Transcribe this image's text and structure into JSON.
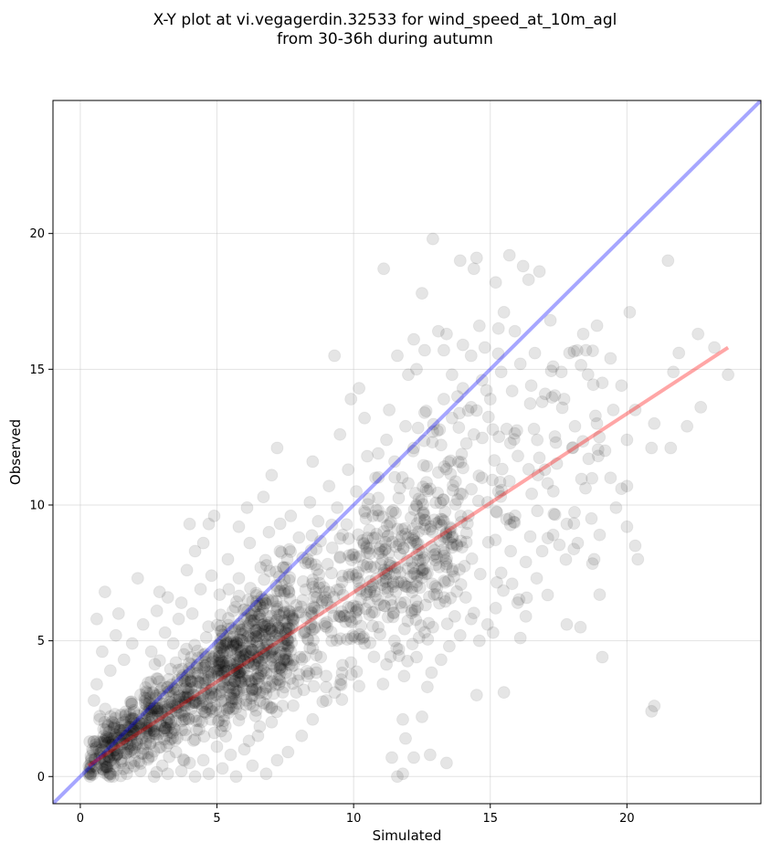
{
  "chart_data": {
    "type": "scatter",
    "title_line1": "X-Y plot at vi.vegagerdin.32533 for wind_speed_at_10m_agl",
    "title_line2": "from 30-36h during autumn",
    "xlabel": "Simulated",
    "ylabel": "Observed",
    "xlim": [
      -1.0,
      24.9
    ],
    "ylim": [
      -1.0,
      24.9
    ],
    "xticks": [
      0,
      5,
      10,
      15,
      20
    ],
    "yticks": [
      0,
      5,
      10,
      15,
      20
    ],
    "grid": true,
    "point_color": "#000000",
    "point_alpha": 0.1,
    "series": [
      {
        "type": "scatter",
        "n_points": 1800,
        "points": [
          [
            0.6,
            5.8
          ],
          [
            0.9,
            6.8
          ],
          [
            1.4,
            6.0
          ],
          [
            2.1,
            7.3
          ],
          [
            2.9,
            6.8
          ],
          [
            3.2,
            6.6
          ],
          [
            3.6,
            5.8
          ],
          [
            3.9,
            7.6
          ],
          [
            4.0,
            9.3
          ],
          [
            4.2,
            8.3
          ],
          [
            4.5,
            8.6
          ],
          [
            4.7,
            9.3
          ],
          [
            4.9,
            9.6
          ],
          [
            5.8,
            9.2
          ],
          [
            6.1,
            9.9
          ],
          [
            6.7,
            10.3
          ],
          [
            7.0,
            11.1
          ],
          [
            7.2,
            12.1
          ],
          [
            8.5,
            11.6
          ],
          [
            9.3,
            15.5
          ],
          [
            9.5,
            12.6
          ],
          [
            9.9,
            13.9
          ],
          [
            10.2,
            14.3
          ],
          [
            10.4,
            13.2
          ],
          [
            10.9,
            11.9
          ],
          [
            11.3,
            13.5
          ],
          [
            11.1,
            18.7
          ],
          [
            11.6,
            15.5
          ],
          [
            12.0,
            14.8
          ],
          [
            12.2,
            16.1
          ],
          [
            12.3,
            15.0
          ],
          [
            12.5,
            17.8
          ],
          [
            12.6,
            15.7
          ],
          [
            12.9,
            19.8
          ],
          [
            13.1,
            16.4
          ],
          [
            13.3,
            15.7
          ],
          [
            13.4,
            16.3
          ],
          [
            13.6,
            14.8
          ],
          [
            13.8,
            14.0
          ],
          [
            13.9,
            19.0
          ],
          [
            14.0,
            15.9
          ],
          [
            14.3,
            15.5
          ],
          [
            14.4,
            18.7
          ],
          [
            14.5,
            19.1
          ],
          [
            14.6,
            16.6
          ],
          [
            14.8,
            15.8
          ],
          [
            15.2,
            18.2
          ],
          [
            15.3,
            16.5
          ],
          [
            15.5,
            17.1
          ],
          [
            15.7,
            19.2
          ],
          [
            15.9,
            16.4
          ],
          [
            16.2,
            18.8
          ],
          [
            16.4,
            18.3
          ],
          [
            16.8,
            18.6
          ],
          [
            17.2,
            16.8
          ],
          [
            17.6,
            14.9
          ],
          [
            17.9,
            15.6
          ],
          [
            18.4,
            16.3
          ],
          [
            18.5,
            15.7
          ],
          [
            19.1,
            14.5
          ],
          [
            19.4,
            15.4
          ],
          [
            20.1,
            17.1
          ],
          [
            21.5,
            19.0
          ],
          [
            21.9,
            15.6
          ],
          [
            22.6,
            16.3
          ],
          [
            23.2,
            15.8
          ],
          [
            23.7,
            14.8
          ],
          [
            21.7,
            14.9
          ],
          [
            22.2,
            12.9
          ],
          [
            22.7,
            13.6
          ],
          [
            20.9,
            12.1
          ],
          [
            21.0,
            13.0
          ],
          [
            21.6,
            12.1
          ],
          [
            20.3,
            13.5
          ],
          [
            20.0,
            12.4
          ],
          [
            19.5,
            13.5
          ],
          [
            19.2,
            12.0
          ],
          [
            18.9,
            13.0
          ],
          [
            18.6,
            11.7
          ],
          [
            18.1,
            12.9
          ],
          [
            17.7,
            13.9
          ],
          [
            17.4,
            12.3
          ],
          [
            17.0,
            11.3
          ],
          [
            16.6,
            12.8
          ],
          [
            19.8,
            10.6
          ],
          [
            20.0,
            10.7
          ],
          [
            19.6,
            9.9
          ],
          [
            20.3,
            8.5
          ],
          [
            20.4,
            8.0
          ],
          [
            20.0,
            9.2
          ],
          [
            19.0,
            8.9
          ],
          [
            18.7,
            9.5
          ],
          [
            18.2,
            8.6
          ],
          [
            17.8,
            9.3
          ],
          [
            17.3,
            8.9
          ],
          [
            16.9,
            8.3
          ],
          [
            16.7,
            7.3
          ],
          [
            16.3,
            7.9
          ],
          [
            16.0,
            6.4
          ],
          [
            15.8,
            7.1
          ],
          [
            15.4,
            7.5
          ],
          [
            15.2,
            6.2
          ],
          [
            15.1,
            5.3
          ],
          [
            14.9,
            5.6
          ],
          [
            14.6,
            5.0
          ],
          [
            14.3,
            5.8
          ],
          [
            14.1,
            6.6
          ],
          [
            13.9,
            5.2
          ],
          [
            13.7,
            5.9
          ],
          [
            13.5,
            4.8
          ],
          [
            13.2,
            4.3
          ],
          [
            12.9,
            5.5
          ],
          [
            13.4,
            0.5
          ],
          [
            12.8,
            0.8
          ],
          [
            12.2,
            0.7
          ],
          [
            11.8,
            0.1
          ],
          [
            11.4,
            0.7
          ],
          [
            11.6,
            0.0
          ],
          [
            11.9,
            1.4
          ],
          [
            12.5,
            2.2
          ],
          [
            12.7,
            3.3
          ],
          [
            12.3,
            4.4
          ],
          [
            11.8,
            2.1
          ],
          [
            14.5,
            3.0
          ],
          [
            15.5,
            3.1
          ],
          [
            16.1,
            5.1
          ],
          [
            16.3,
            5.9
          ],
          [
            17.8,
            5.6
          ],
          [
            18.3,
            5.5
          ],
          [
            19.0,
            6.7
          ],
          [
            19.1,
            4.4
          ],
          [
            20.9,
            2.4
          ],
          [
            21.0,
            2.6
          ],
          [
            18.8,
            8.0
          ],
          [
            19.4,
            11.0
          ],
          [
            19.8,
            14.4
          ],
          [
            18.0,
            12.1
          ],
          [
            17.1,
            10.8
          ],
          [
            15.7,
            9.5
          ],
          [
            15.3,
            10.5
          ],
          [
            14.9,
            10.1
          ],
          [
            14.7,
            11.0
          ],
          [
            14.2,
            9.6
          ],
          [
            13.8,
            10.2
          ],
          [
            13.6,
            8.8
          ],
          [
            13.3,
            9.4
          ],
          [
            13.0,
            8.2
          ],
          [
            12.8,
            9.1
          ],
          [
            12.5,
            7.6
          ],
          [
            12.2,
            8.7
          ],
          [
            11.9,
            7.0
          ],
          [
            11.7,
            8.2
          ],
          [
            11.4,
            6.3
          ],
          [
            11.1,
            7.5
          ],
          [
            10.9,
            5.5
          ],
          [
            10.6,
            6.8
          ],
          [
            10.4,
            4.9
          ],
          [
            10.1,
            6.1
          ],
          [
            9.9,
            4.2
          ],
          [
            9.7,
            5.7
          ],
          [
            9.5,
            3.4
          ],
          [
            9.2,
            5.0
          ],
          [
            9.0,
            2.8
          ],
          [
            8.8,
            4.4
          ],
          [
            8.5,
            2.1
          ],
          [
            8.3,
            3.7
          ],
          [
            8.1,
            1.5
          ],
          [
            7.9,
            3.1
          ],
          [
            7.6,
            0.9
          ],
          [
            7.4,
            2.6
          ],
          [
            7.2,
            0.6
          ],
          [
            7.0,
            2.0
          ],
          [
            6.8,
            0.1
          ],
          [
            6.5,
            1.5
          ],
          [
            6.3,
            0.4
          ],
          [
            6.0,
            1.0
          ],
          [
            5.7,
            0.0
          ],
          [
            5.5,
            0.8
          ],
          [
            5.2,
            0.3
          ],
          [
            5.0,
            1.1
          ],
          [
            4.7,
            0.1
          ],
          [
            4.5,
            0.6
          ],
          [
            4.2,
            0.0
          ],
          [
            4.0,
            0.5
          ],
          [
            3.7,
            0.2
          ],
          [
            3.5,
            0.9
          ],
          [
            3.2,
            0.1
          ],
          [
            3.0,
            0.4
          ],
          [
            2.7,
            0.0
          ],
          [
            2.5,
            0.7
          ],
          [
            2.2,
            0.2
          ],
          [
            2.0,
            0.9
          ],
          [
            1.7,
            0.1
          ],
          [
            1.5,
            0.5
          ],
          [
            1.2,
            0.0
          ],
          [
            1.0,
            0.8
          ],
          [
            0.8,
            0.3
          ],
          [
            0.6,
            1.3
          ],
          [
            0.4,
            0.6
          ],
          [
            0.3,
            0.1
          ],
          [
            0.7,
            2.1
          ],
          [
            0.5,
            2.8
          ],
          [
            0.6,
            3.4
          ],
          [
            0.8,
            4.6
          ],
          [
            1.1,
            3.9
          ],
          [
            1.3,
            5.2
          ],
          [
            1.6,
            4.3
          ],
          [
            1.9,
            4.9
          ],
          [
            2.3,
            5.6
          ],
          [
            2.6,
            4.6
          ],
          [
            2.8,
            6.1
          ],
          [
            3.1,
            5.3
          ],
          [
            3.4,
            4.9
          ],
          [
            3.7,
            6.4
          ],
          [
            4.1,
            6.0
          ],
          [
            4.4,
            6.9
          ],
          [
            4.8,
            7.4
          ],
          [
            5.1,
            6.7
          ],
          [
            5.4,
            8.0
          ],
          [
            5.8,
            7.3
          ],
          [
            6.2,
            8.6
          ],
          [
            6.6,
            7.7
          ],
          [
            6.9,
            9.0
          ],
          [
            7.3,
            8.3
          ],
          [
            7.7,
            9.6
          ],
          [
            8.0,
            8.8
          ],
          [
            8.4,
            10.1
          ],
          [
            8.7,
            9.4
          ],
          [
            9.1,
            10.7
          ],
          [
            9.4,
            9.9
          ],
          [
            9.8,
            11.3
          ],
          [
            10.1,
            10.5
          ],
          [
            10.5,
            11.8
          ],
          [
            10.8,
            11.0
          ],
          [
            11.2,
            12.4
          ],
          [
            11.5,
            11.6
          ],
          [
            11.9,
            12.9
          ],
          [
            12.2,
            12.1
          ],
          [
            12.6,
            13.4
          ],
          [
            12.9,
            12.7
          ],
          [
            13.3,
            13.9
          ],
          [
            13.6,
            13.2
          ],
          [
            14.0,
            14.3
          ],
          [
            14.3,
            13.6
          ],
          [
            14.7,
            14.6
          ],
          [
            15.0,
            13.9
          ],
          [
            15.4,
            14.9
          ],
          [
            15.8,
            14.2
          ],
          [
            16.1,
            15.2
          ],
          [
            16.5,
            14.4
          ],
          [
            16.9,
            13.8
          ],
          [
            17.3,
            15.1
          ],
          [
            15.6,
            12.8
          ],
          [
            14.4,
            12.6
          ],
          [
            13.1,
            11.2
          ],
          [
            12.0,
            10.8
          ],
          [
            10.7,
            9.6
          ],
          [
            9.6,
            8.9
          ],
          [
            8.6,
            7.8
          ],
          [
            7.6,
            6.9
          ],
          [
            6.7,
            6.2
          ],
          [
            5.9,
            5.4
          ],
          [
            5.0,
            4.6
          ],
          [
            4.2,
            3.8
          ],
          [
            3.4,
            3.1
          ],
          [
            2.6,
            2.4
          ],
          [
            1.9,
            1.7
          ],
          [
            1.2,
            1.1
          ]
        ]
      },
      {
        "name": "1:1 line",
        "type": "line",
        "color": "#0000ff",
        "alpha": 0.35,
        "x": [
          -1.0,
          24.9
        ],
        "y": [
          -1.0,
          24.9
        ]
      },
      {
        "name": "fit line",
        "type": "line",
        "color": "#ff0000",
        "alpha": 0.35,
        "x": [
          0.3,
          23.7
        ],
        "y": [
          0.4,
          15.8
        ]
      }
    ]
  }
}
